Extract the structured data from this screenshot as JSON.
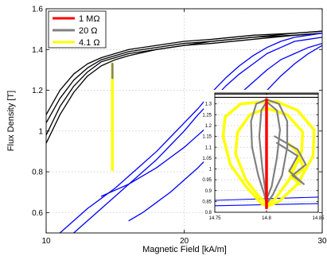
{
  "chart_data": {
    "type": "line",
    "xlabel": "Magnetic Field [kA/m]",
    "ylabel": "Flux Density [T]",
    "xlim": [
      10,
      30
    ],
    "ylim": [
      0.5,
      1.6
    ],
    "xticks": [
      "10",
      "20",
      "30"
    ],
    "yticks": [
      "0.6",
      "0.8",
      "1",
      "1.2",
      "1.4",
      "1.6"
    ],
    "grid": true,
    "legend": {
      "location": "top-left",
      "entries": [
        {
          "label": "1 MΩ",
          "color": "#ff0000"
        },
        {
          "label": "20 Ω",
          "color": "#808080"
        },
        {
          "label": "4.1 Ω",
          "color": "#ffff00"
        }
      ]
    },
    "series": [
      {
        "color": "#000000",
        "x": [
          10,
          11,
          12,
          13,
          14,
          15,
          16,
          18,
          20,
          22,
          25,
          28,
          30
        ],
        "y": [
          1.08,
          1.2,
          1.28,
          1.33,
          1.36,
          1.38,
          1.4,
          1.42,
          1.44,
          1.45,
          1.47,
          1.48,
          1.49
        ]
      },
      {
        "color": "#000000",
        "x": [
          10,
          11,
          12,
          13,
          14,
          15,
          16,
          18,
          20,
          22,
          25,
          28,
          30
        ],
        "y": [
          1.04,
          1.16,
          1.25,
          1.31,
          1.35,
          1.37,
          1.39,
          1.41,
          1.43,
          1.44,
          1.46,
          1.48,
          1.49
        ]
      },
      {
        "color": "#000000",
        "x": [
          10,
          11,
          12,
          13,
          14,
          15,
          16,
          18,
          20,
          22,
          25,
          28,
          30
        ],
        "y": [
          0.98,
          1.12,
          1.22,
          1.29,
          1.34,
          1.36,
          1.38,
          1.4,
          1.42,
          1.44,
          1.46,
          1.47,
          1.48
        ]
      },
      {
        "color": "#000000",
        "x": [
          10,
          11,
          12,
          13,
          14,
          15,
          16,
          18,
          20,
          22,
          25,
          28,
          30
        ],
        "y": [
          0.94,
          1.08,
          1.19,
          1.27,
          1.32,
          1.35,
          1.37,
          1.4,
          1.42,
          1.43,
          1.45,
          1.47,
          1.48
        ]
      },
      {
        "color": "#0000ff",
        "x": [
          11,
          12,
          13,
          14,
          15,
          16,
          17,
          18,
          19,
          20,
          21,
          22,
          23,
          24,
          25,
          26,
          27,
          28,
          29,
          30
        ],
        "y": [
          0.5,
          0.56,
          0.62,
          0.67,
          0.72,
          0.78,
          0.84,
          0.9,
          0.97,
          1.04,
          1.11,
          1.19,
          1.26,
          1.32,
          1.37,
          1.41,
          1.44,
          1.46,
          1.47,
          1.48
        ]
      },
      {
        "color": "#0000ff",
        "x": [
          12,
          13,
          14,
          15,
          16,
          17,
          18,
          19,
          20,
          21,
          22,
          23,
          24,
          25,
          26,
          27,
          28,
          29,
          30
        ],
        "y": [
          0.5,
          0.56,
          0.62,
          0.68,
          0.74,
          0.8,
          0.86,
          0.93,
          1.0,
          1.08,
          1.15,
          1.22,
          1.28,
          1.33,
          1.38,
          1.41,
          1.44,
          1.45,
          1.46
        ]
      },
      {
        "color": "#0000ff",
        "x": [
          14,
          15,
          16,
          17,
          18,
          19,
          20,
          21,
          22,
          23,
          24,
          25,
          26,
          27,
          28,
          29,
          30
        ],
        "y": [
          0.68,
          0.71,
          0.74,
          0.78,
          0.82,
          0.87,
          0.92,
          0.98,
          1.04,
          1.11,
          1.18,
          1.24,
          1.3,
          1.35,
          1.38,
          1.41,
          1.43
        ]
      },
      {
        "color": "#0000ff",
        "x": [
          16,
          17,
          18,
          19,
          20,
          21,
          22,
          23,
          24,
          25,
          26,
          27,
          28,
          29,
          30
        ],
        "y": [
          0.56,
          0.6,
          0.65,
          0.7,
          0.76,
          0.82,
          0.89,
          0.96,
          1.04,
          1.12,
          1.2,
          1.27,
          1.33,
          1.38,
          1.42
        ]
      },
      {
        "color": "#ffff00",
        "x": [
          14.8,
          14.8
        ],
        "y": [
          0.81,
          1.33
        ]
      },
      {
        "color": "#808080",
        "x": [
          14.8,
          14.8
        ],
        "y": [
          1.26,
          1.33
        ]
      }
    ],
    "inset": {
      "xlim": [
        14.75,
        14.85
      ],
      "ylim": [
        0.8,
        1.35
      ],
      "xticks": [
        "14.75",
        "14.8",
        "14.85"
      ],
      "yticks": [
        "0.8",
        "0.85",
        "0.9",
        "0.95",
        "1",
        "1.05",
        "1.1",
        "1.15",
        "1.2",
        "1.25",
        "1.3"
      ],
      "series": [
        {
          "color": "#000000",
          "x": [
            14.75,
            14.85
          ],
          "y": [
            1.33,
            1.33
          ]
        },
        {
          "color": "#000000",
          "x": [
            14.75,
            14.85
          ],
          "y": [
            1.345,
            1.345
          ]
        },
        {
          "color": "#0000ff",
          "x": [
            14.75,
            14.85
          ],
          "y": [
            0.83,
            0.84
          ]
        },
        {
          "color": "#0000ff",
          "x": [
            14.75,
            14.85
          ],
          "y": [
            0.855,
            0.87
          ]
        },
        {
          "color": "#ffff00",
          "x": [
            14.8,
            14.775,
            14.76,
            14.758,
            14.765,
            14.78,
            14.795,
            14.802,
            14.812,
            14.83,
            14.845,
            14.846,
            14.83,
            14.81,
            14.8
          ],
          "y": [
            1.31,
            1.3,
            1.24,
            1.15,
            1.02,
            0.92,
            0.84,
            0.83,
            0.85,
            0.93,
            1.06,
            1.18,
            1.27,
            1.31,
            1.31
          ]
        },
        {
          "color": "#ffff00",
          "x": [
            14.8,
            14.784,
            14.772,
            14.77,
            14.78,
            14.793,
            14.801,
            14.808,
            14.822,
            14.834,
            14.835,
            14.82,
            14.8
          ],
          "y": [
            1.28,
            1.25,
            1.17,
            1.07,
            0.95,
            0.87,
            0.84,
            0.86,
            0.95,
            1.08,
            1.17,
            1.25,
            1.28
          ]
        },
        {
          "color": "#ffff00",
          "x": [
            14.82,
            14.83,
            14.836,
            14.825,
            14.832,
            14.822,
            14.834,
            14.826
          ],
          "y": [
            1.12,
            1.08,
            1.0,
            0.96,
            0.93,
            0.99,
            1.05,
            1.1
          ]
        },
        {
          "color": "#808080",
          "x": [
            14.8,
            14.79,
            14.785,
            14.786,
            14.792,
            14.798,
            14.8,
            14.806,
            14.815,
            14.82,
            14.82,
            14.812,
            14.8
          ],
          "y": [
            1.32,
            1.3,
            1.22,
            1.1,
            0.97,
            0.88,
            0.84,
            0.88,
            0.97,
            1.1,
            1.22,
            1.3,
            1.32
          ]
        },
        {
          "color": "#808080",
          "x": [
            14.8,
            14.795,
            14.793,
            14.796,
            14.8,
            14.805,
            14.81,
            14.813,
            14.81,
            14.8
          ],
          "y": [
            1.31,
            1.27,
            1.15,
            1.0,
            0.86,
            0.92,
            1.05,
            1.18,
            1.27,
            1.31
          ]
        },
        {
          "color": "#808080",
          "x": [
            14.808,
            14.83,
            14.838,
            14.825,
            14.836,
            14.822,
            14.83,
            14.81
          ],
          "y": [
            1.15,
            1.09,
            1.02,
            0.97,
            0.93,
            0.99,
            1.06,
            1.12
          ]
        },
        {
          "color": "#ff0000",
          "x": [
            14.8,
            14.8
          ],
          "y": [
            0.82,
            1.32
          ]
        }
      ]
    }
  }
}
